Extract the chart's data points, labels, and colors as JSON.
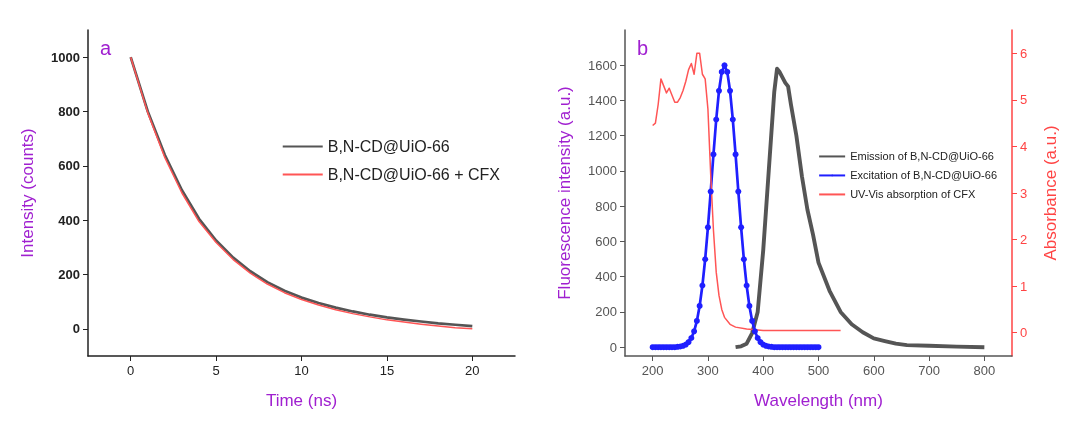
{
  "chart_data": [
    {
      "type": "line",
      "xlabel": "Time (ns)",
      "ylabel": "Intensity (counts)",
      "annotations": [
        "a"
      ],
      "xlim": [
        -2.5,
        22.5
      ],
      "xticks": [
        0,
        5,
        10,
        15,
        20
      ],
      "ylim": [
        -100,
        1100
      ],
      "yticks": [
        0,
        200,
        400,
        600,
        800,
        1000
      ],
      "grid": false,
      "legend": "right",
      "marker": "none",
      "x": [
        0,
        1,
        2,
        3,
        4,
        5,
        6,
        7,
        8,
        9,
        10,
        11,
        12,
        13,
        14,
        15,
        16,
        17,
        18,
        19,
        20
      ],
      "series": [
        {
          "name": "B,N-CD@UiO-66",
          "color": "#555555",
          "values": [
            1000,
            800,
            640,
            510,
            405,
            325,
            262,
            212,
            172,
            140,
            115,
            95,
            78,
            64,
            52,
            42,
            34,
            27,
            20,
            15,
            10
          ]
        },
        {
          "name": "B,N-CD@UiO-66 + CFX",
          "color": "#ff5555",
          "values": [
            1000,
            795,
            630,
            500,
            395,
            318,
            255,
            205,
            165,
            133,
            108,
            88,
            70,
            56,
            44,
            33,
            25,
            17,
            10,
            4,
            0
          ]
        }
      ]
    },
    {
      "type": "line",
      "xlabel": "Wavelength (nm)",
      "ylabel": "Fluorescence intensity (a.u.)",
      "y2label": "Absorbance (a.u.)",
      "annotations": [
        "b"
      ],
      "xlim": [
        150,
        850
      ],
      "xticks": [
        200,
        300,
        400,
        500,
        600,
        700,
        800
      ],
      "ylim": [
        -50,
        1800
      ],
      "yticks": [
        0,
        200,
        400,
        600,
        800,
        1000,
        1200,
        1400,
        1600
      ],
      "y2lim": [
        -0.5,
        6.5
      ],
      "y2ticks": [
        0,
        1,
        2,
        3,
        4,
        5,
        6
      ],
      "grid": false,
      "legend": "right",
      "series": [
        {
          "name": "Emission of B,N-CD@UiO-66",
          "color": "#555555",
          "marker": "none",
          "x": [
            350,
            360,
            370,
            380,
            390,
            400,
            410,
            420,
            425,
            430,
            440,
            445,
            450,
            460,
            470,
            480,
            490,
            500,
            520,
            540,
            560,
            580,
            600,
            620,
            640,
            660,
            700,
            750,
            800
          ],
          "values": [
            0,
            5,
            20,
            80,
            200,
            550,
            1000,
            1450,
            1580,
            1560,
            1500,
            1480,
            1380,
            1200,
            970,
            780,
            640,
            480,
            320,
            200,
            130,
            85,
            50,
            35,
            20,
            12,
            8,
            3,
            0
          ]
        },
        {
          "name": "Excitation of B,N-CD@UiO-66",
          "color": "#1f1fff",
          "marker": "circle",
          "x": [
            200,
            205,
            210,
            215,
            220,
            225,
            230,
            235,
            240,
            245,
            250,
            255,
            260,
            265,
            270,
            275,
            280,
            285,
            290,
            295,
            300,
            305,
            310,
            315,
            320,
            325,
            330,
            335,
            340,
            345,
            350,
            355,
            360,
            365,
            370,
            375,
            380,
            385,
            390,
            395,
            400,
            405,
            410,
            415,
            420,
            425,
            430,
            435,
            440,
            445,
            450,
            455,
            460,
            465,
            470,
            475,
            480,
            485,
            490,
            495,
            500
          ],
          "values": [
            0,
            0,
            0,
            0,
            0,
            0,
            0,
            0,
            0,
            2,
            4,
            8,
            15,
            29,
            52,
            90,
            149,
            234,
            350,
            499,
            680,
            883,
            1094,
            1292,
            1455,
            1562,
            1600,
            1562,
            1455,
            1292,
            1094,
            883,
            680,
            499,
            350,
            234,
            149,
            90,
            52,
            29,
            15,
            8,
            4,
            2,
            0,
            0,
            0,
            0,
            0,
            0,
            0,
            0,
            0,
            0,
            0,
            0,
            0,
            0,
            0,
            0,
            0
          ]
        },
        {
          "name": "UV-Vis absorption of CFX",
          "color": "#ff5555",
          "marker": "none",
          "axis": "y2",
          "x": [
            200,
            205,
            210,
            215,
            220,
            225,
            230,
            235,
            240,
            245,
            250,
            255,
            260,
            265,
            270,
            275,
            280,
            285,
            290,
            295,
            300,
            305,
            310,
            315,
            320,
            325,
            330,
            340,
            350,
            370,
            400,
            450,
            540
          ],
          "values": [
            4.45,
            4.5,
            4.9,
            5.45,
            5.3,
            5.15,
            5.25,
            5.1,
            4.95,
            4.95,
            5.05,
            5.2,
            5.4,
            5.65,
            5.78,
            5.55,
            6.0,
            6.0,
            5.55,
            5.45,
            4.8,
            3.4,
            2.2,
            1.3,
            0.8,
            0.5,
            0.33,
            0.18,
            0.12,
            0.08,
            0.05,
            0.05,
            0.05
          ]
        }
      ]
    }
  ]
}
